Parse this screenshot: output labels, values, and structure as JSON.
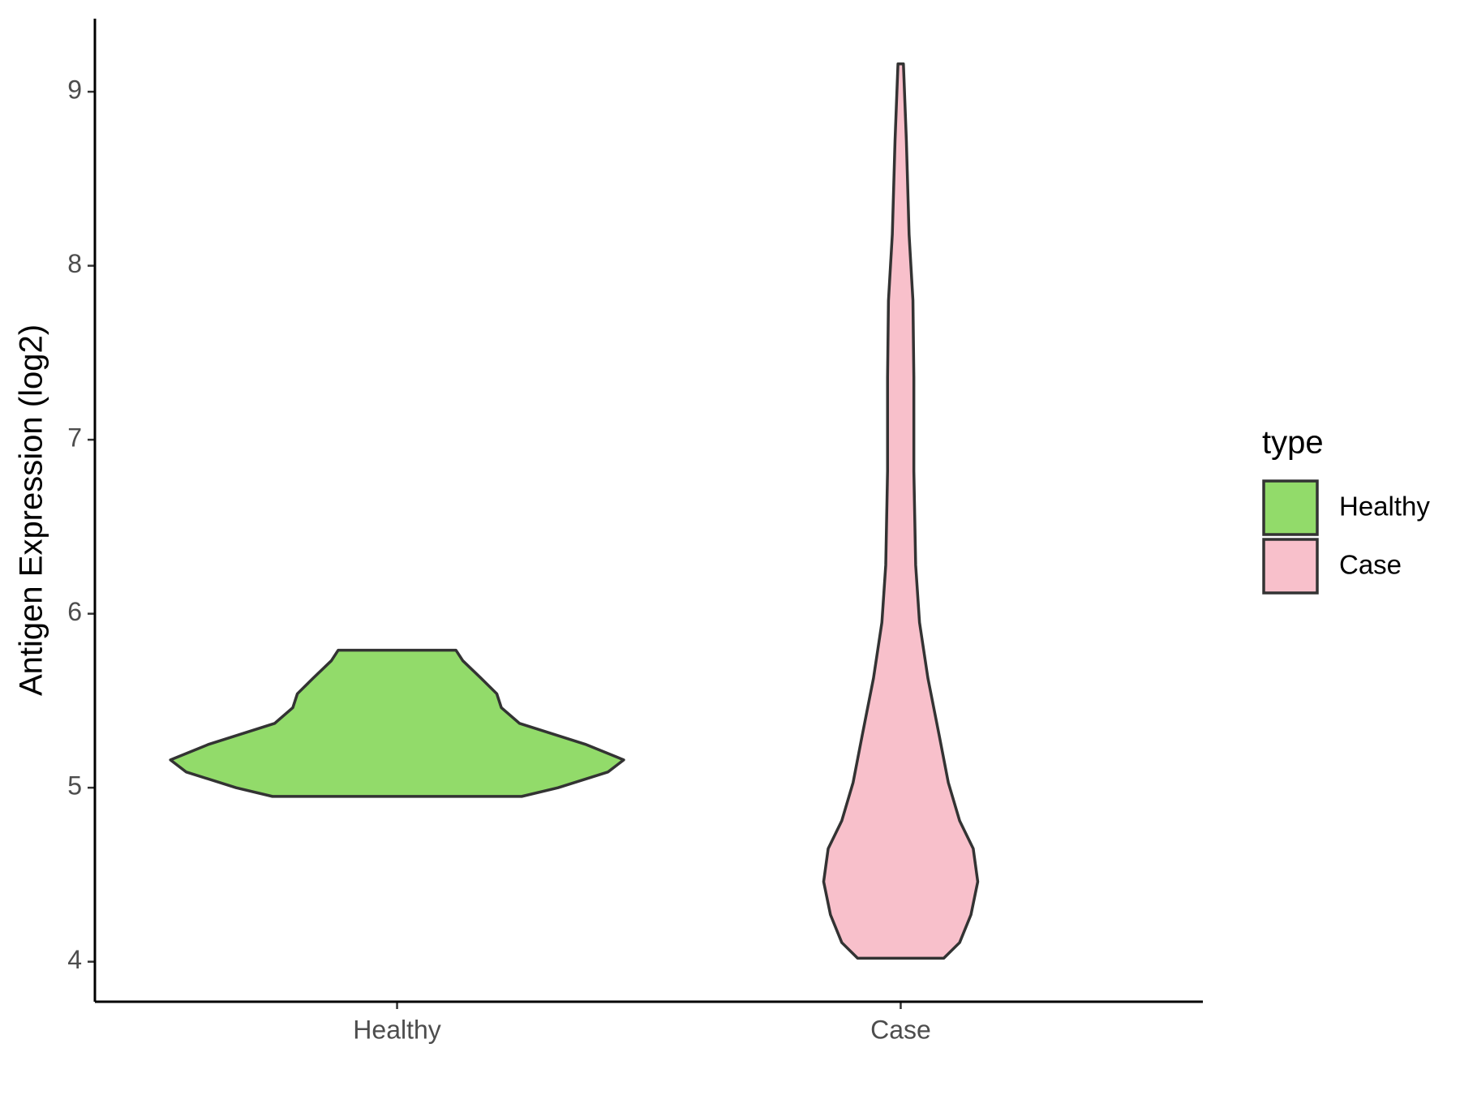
{
  "chart_data": {
    "type": "violin",
    "y_label": "Antigen Expression (log2)",
    "categories": [
      "Healthy",
      "Case"
    ],
    "legend_title": "type",
    "legend_position": "right",
    "series": [
      {
        "name": "Healthy",
        "color": "#92db6a",
        "y": [
          4.95,
          5.0,
          5.09,
          5.16,
          5.25,
          5.37,
          5.46,
          5.54,
          5.63,
          5.73,
          5.79
        ],
        "width": [
          0.55,
          0.71,
          0.93,
          1.0,
          0.83,
          0.54,
          0.46,
          0.44,
          0.37,
          0.29,
          0.26
        ]
      },
      {
        "name": "Case",
        "color": "#f8c0cb",
        "y": [
          4.02,
          4.11,
          4.27,
          4.46,
          4.65,
          4.81,
          5.03,
          5.3,
          5.63,
          5.95,
          6.28,
          6.82,
          7.36,
          7.8,
          8.18,
          8.72,
          9.16
        ],
        "width": [
          0.19,
          0.26,
          0.31,
          0.34,
          0.32,
          0.26,
          0.21,
          0.17,
          0.12,
          0.083,
          0.066,
          0.058,
          0.058,
          0.054,
          0.037,
          0.025,
          0.012
        ]
      }
    ],
    "ylim": [
      3.77,
      9.42
    ],
    "yticks": [
      4,
      5,
      6,
      7,
      8,
      9
    ],
    "grid": false
  }
}
